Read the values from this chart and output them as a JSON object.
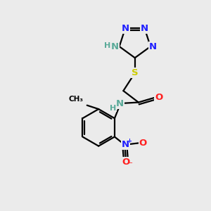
{
  "bg_color": "#ebebeb",
  "atom_colors": {
    "C": "#000000",
    "N": "#2020ff",
    "O": "#ff2020",
    "S": "#cccc00",
    "NH_color": "#5aaa99"
  },
  "bond_lw": 1.6,
  "font_size": 9.5,
  "xlim": [
    0,
    10
  ],
  "ylim": [
    0,
    10
  ]
}
